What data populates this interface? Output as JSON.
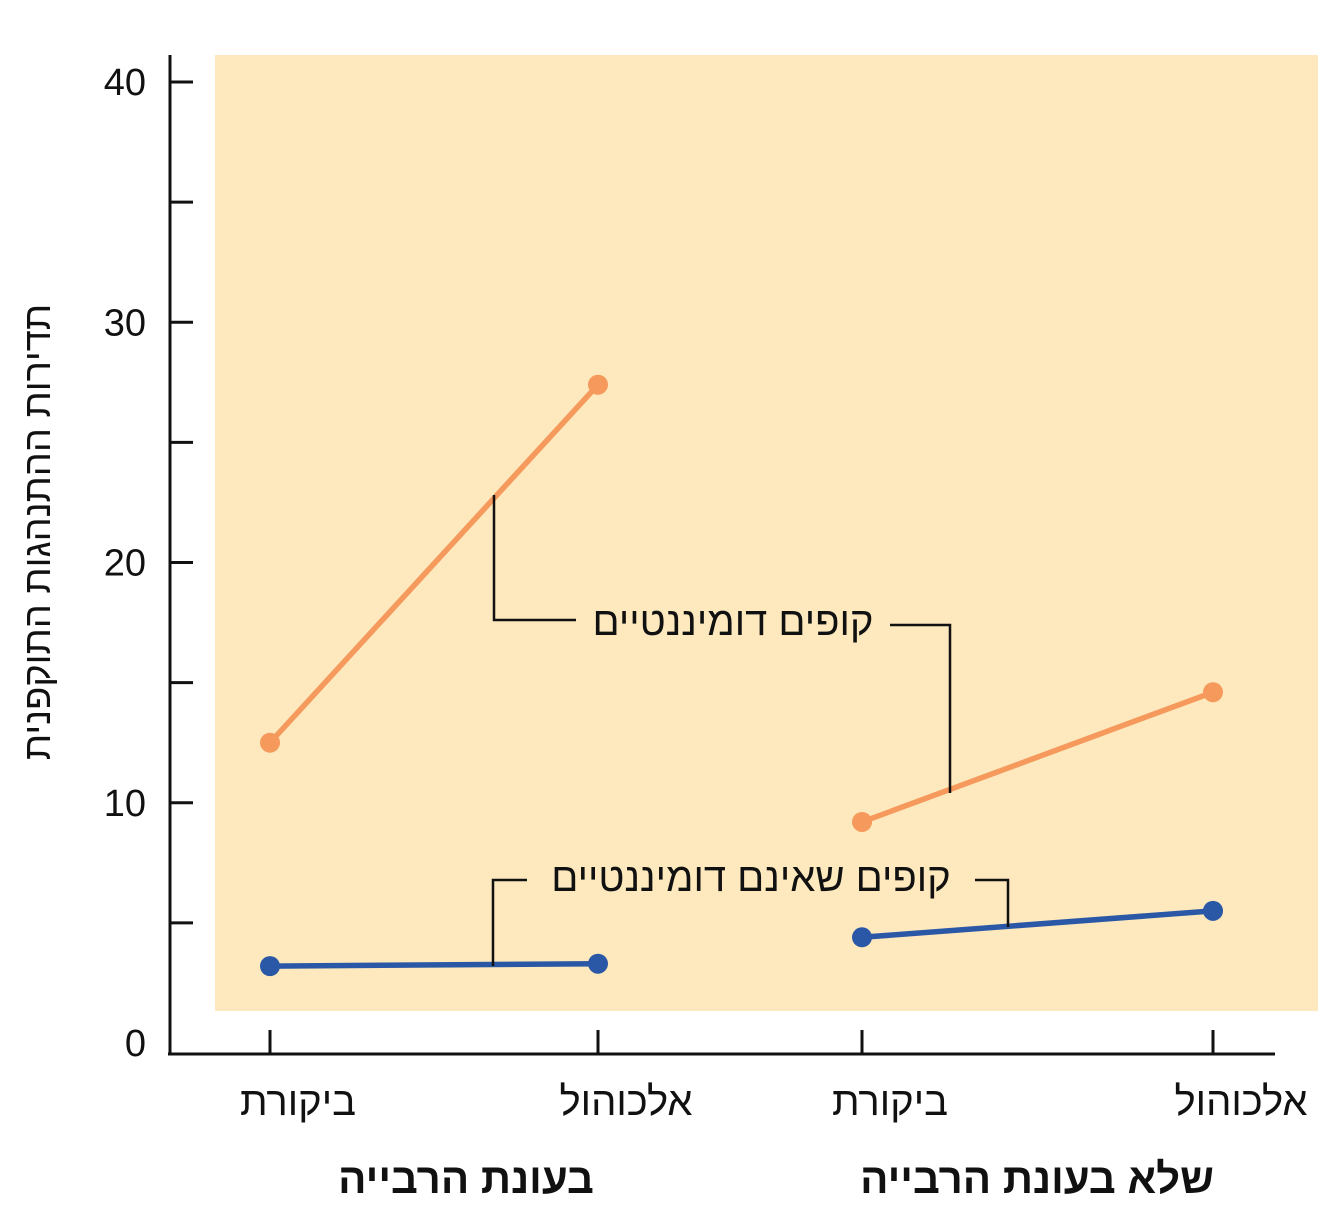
{
  "chart_data": {
    "type": "line",
    "ylabel": "תדירות ההתנהגות התוקפנית",
    "ylim": [
      0,
      40
    ],
    "yticks": [
      0,
      10,
      20,
      30,
      40
    ],
    "grid": false,
    "background_color": "#fde9bd",
    "groups": [
      {
        "name": "בעונת הרבייה",
        "categories": [
          "ביקורת",
          "אלכוהול"
        ]
      },
      {
        "name": "שלא בעונת הרבייה",
        "categories": [
          "ביקורת",
          "אלכוהול"
        ]
      }
    ],
    "series": [
      {
        "name": "קופים דומיננטיים",
        "color": "#f5995c",
        "values": [
          [
            12.5,
            27.4
          ],
          [
            9.2,
            14.6
          ]
        ]
      },
      {
        "name": "קופים שאינם דומיננטיים",
        "color": "#2b58a6",
        "values": [
          [
            3.2,
            3.3
          ],
          [
            4.4,
            5.5
          ]
        ]
      }
    ]
  }
}
